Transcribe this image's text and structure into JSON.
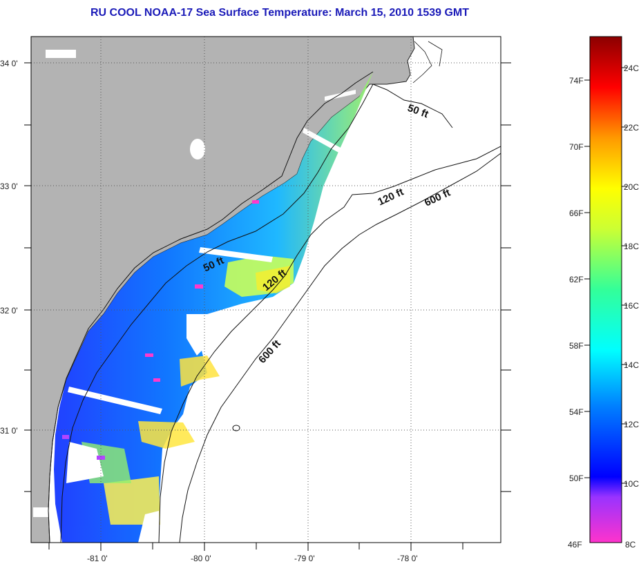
{
  "title": "RU COOL  NOAA-17  Sea Surface Temperature:  March 15, 2010 1539 GMT",
  "map": {
    "lat_labels": [
      "34 0'",
      "33 0'",
      "32 0'",
      "31 0'"
    ],
    "lon_labels": [
      "-81 0'",
      "-80 0'",
      "-79 0'",
      "-78 0'"
    ],
    "contour_labels": [
      "50 ft",
      "120 ft",
      "600 ft",
      "50 ft",
      "120 ft",
      "600 ft"
    ],
    "colors": {
      "land": "#b3b3b3",
      "no_data": "#ffffff",
      "grid": "#555555"
    }
  },
  "colorbar": {
    "f_labels": [
      "74F",
      "70F",
      "66F",
      "62F",
      "58F",
      "54F",
      "50F",
      "46F"
    ],
    "c_labels": [
      "24C",
      "22C",
      "20C",
      "18C",
      "16C",
      "14C",
      "12C",
      "10C",
      "8C"
    ],
    "f_range": [
      46,
      76
    ],
    "c_range": [
      8,
      25
    ]
  }
}
